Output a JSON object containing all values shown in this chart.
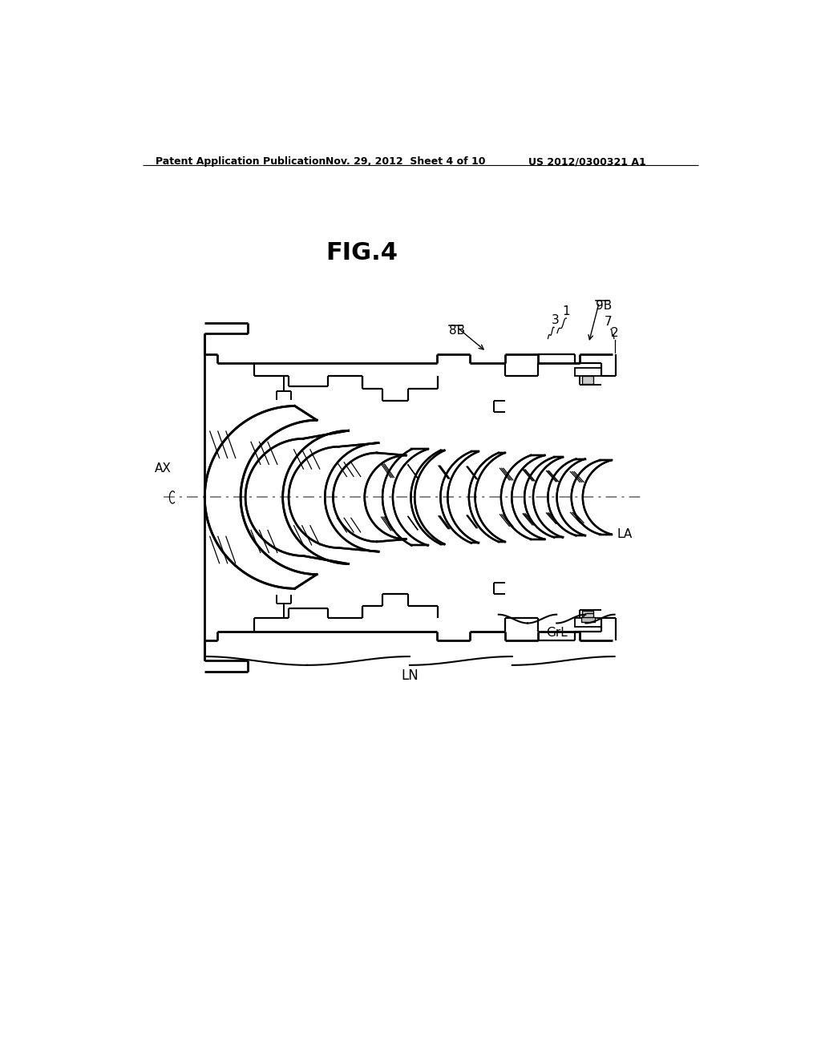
{
  "title": "FIG.4",
  "header_left": "Patent Application Publication",
  "header_center": "Nov. 29, 2012  Sheet 4 of 10",
  "header_right": "US 2012/0300321 A1",
  "bg_color": "#ffffff",
  "line_color": "#000000",
  "fig_label": "FIG.4",
  "label_9B": "9B",
  "label_8B": "8B",
  "label_1": "1",
  "label_3": "3",
  "label_7": "7",
  "label_2": "2",
  "label_AX": "AX",
  "label_LA": "LA",
  "label_GrL": "GrL",
  "label_LN": "LN",
  "OAY": 720
}
